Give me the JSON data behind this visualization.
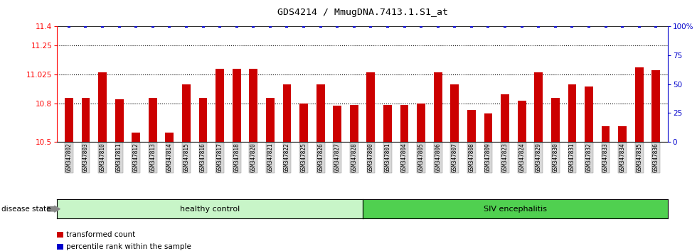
{
  "title": "GDS4214 / MmugDNA.7413.1.S1_at",
  "categories": [
    "GSM347802",
    "GSM347803",
    "GSM347810",
    "GSM347811",
    "GSM347812",
    "GSM347813",
    "GSM347814",
    "GSM347815",
    "GSM347816",
    "GSM347817",
    "GSM347818",
    "GSM347820",
    "GSM347821",
    "GSM347822",
    "GSM347825",
    "GSM347826",
    "GSM347827",
    "GSM347828",
    "GSM347800",
    "GSM347801",
    "GSM347804",
    "GSM347805",
    "GSM347806",
    "GSM347807",
    "GSM347808",
    "GSM347809",
    "GSM347823",
    "GSM347824",
    "GSM347829",
    "GSM347830",
    "GSM347831",
    "GSM347832",
    "GSM347833",
    "GSM347834",
    "GSM347835",
    "GSM347836"
  ],
  "bar_values": [
    10.84,
    10.84,
    11.04,
    10.83,
    10.57,
    10.84,
    10.57,
    10.95,
    10.84,
    11.07,
    11.07,
    11.07,
    10.84,
    10.95,
    10.8,
    10.95,
    10.78,
    10.79,
    11.04,
    10.79,
    10.79,
    10.8,
    11.04,
    10.95,
    10.75,
    10.72,
    10.87,
    10.82,
    11.04,
    10.84,
    10.95,
    10.93,
    10.62,
    10.62,
    11.08,
    11.06
  ],
  "percentile_values": [
    100,
    100,
    100,
    100,
    100,
    100,
    100,
    100,
    100,
    100,
    100,
    100,
    100,
    100,
    100,
    100,
    100,
    100,
    100,
    100,
    100,
    100,
    100,
    100,
    100,
    100,
    100,
    100,
    100,
    100,
    100,
    100,
    100,
    100,
    100,
    100
  ],
  "healthy_control_count": 18,
  "siv_count": 18,
  "ylim_left": [
    10.5,
    11.4
  ],
  "ylim_right": [
    0,
    100
  ],
  "yticks_left": [
    10.5,
    10.8,
    11.025,
    11.25,
    11.4
  ],
  "ytick_labels_left": [
    "10.5",
    "10.8",
    "11.025",
    "11.25",
    "11.4"
  ],
  "yticks_right": [
    0,
    25,
    50,
    75,
    100
  ],
  "ytick_labels_right": [
    "0",
    "25",
    "50",
    "75",
    "100%"
  ],
  "bar_color": "#cc0000",
  "percentile_color": "#0000cc",
  "healthy_color": "#c8f5c8",
  "siv_color": "#50d050",
  "legend_bar_label": "transformed count",
  "legend_pct_label": "percentile rank within the sample",
  "group_label_healthy": "healthy control",
  "group_label_siv": "SIV encephalitis",
  "disease_state_label": "disease state"
}
